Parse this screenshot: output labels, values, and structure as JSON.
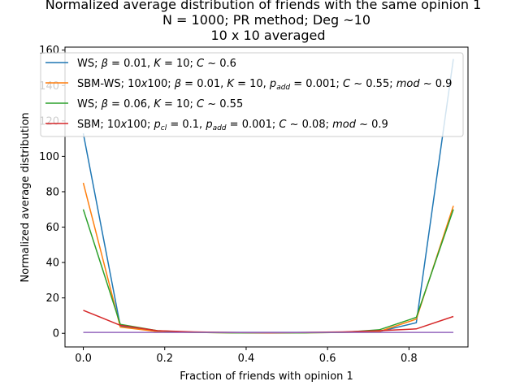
{
  "chart_data": {
    "type": "line",
    "title_lines": [
      "Normalized average distribution of friends with the same opinion 1",
      "N = 1000; PR method; Deg  ~10",
      "10 x 10 averaged"
    ],
    "xlabel": "Fraction of friends with opinion 1",
    "ylabel": "Normalized average distribution",
    "xlim": [
      -0.045,
      0.945
    ],
    "ylim": [
      -7.7,
      161.7
    ],
    "xticks": [
      0.0,
      0.2,
      0.4,
      0.6,
      0.8
    ],
    "xtick_labels": [
      "0.0",
      "0.2",
      "0.4",
      "0.6",
      "0.8"
    ],
    "yticks": [
      0,
      20,
      40,
      60,
      80,
      100,
      120,
      140,
      160
    ],
    "ytick_labels": [
      "0",
      "20",
      "40",
      "60",
      "80",
      "100",
      "120",
      "140",
      "160"
    ],
    "grid": false,
    "legend_position": "top",
    "x": [
      0.0,
      0.091,
      0.182,
      0.273,
      0.364,
      0.455,
      0.545,
      0.636,
      0.727,
      0.818,
      0.909
    ],
    "series": [
      {
        "name": "WS; β = 0.01, K = 10; C ~ 0.6",
        "color": "#1f77b4",
        "values": [
          113,
          4,
          1,
          0.5,
          0.5,
          0.5,
          0.5,
          0.5,
          1,
          6,
          155
        ]
      },
      {
        "name": "SBM-WS; 10x100; β = 0.01, K = 10, p_add = 0.001; C ~ 0.55; mod ~ 0.9",
        "color": "#ff7f0e",
        "values": [
          85,
          3.5,
          1,
          0.5,
          0.3,
          0.3,
          0.3,
          0.5,
          1,
          8,
          72
        ]
      },
      {
        "name": "WS; β = 0.06, K = 10; C ~ 0.55",
        "color": "#2ca02c",
        "values": [
          70,
          5,
          1.5,
          0.5,
          0.3,
          0.2,
          0.3,
          0.5,
          2,
          9,
          70
        ]
      },
      {
        "name": "SBM; 10x100; p_cl = 0.1, p_add = 0.001; C ~ 0.08; mod ~ 0.9",
        "color": "#d62728",
        "values": [
          13,
          4.5,
          1.5,
          0.8,
          0.5,
          0.3,
          0.5,
          0.8,
          1.5,
          2.5,
          9.5
        ]
      },
      {
        "name": "",
        "color": "#9467bd",
        "values": [
          0.5,
          0.5,
          0.5,
          0.5,
          0.5,
          0.5,
          0.5,
          0.5,
          0.5,
          0.5,
          0.5
        ]
      }
    ]
  }
}
